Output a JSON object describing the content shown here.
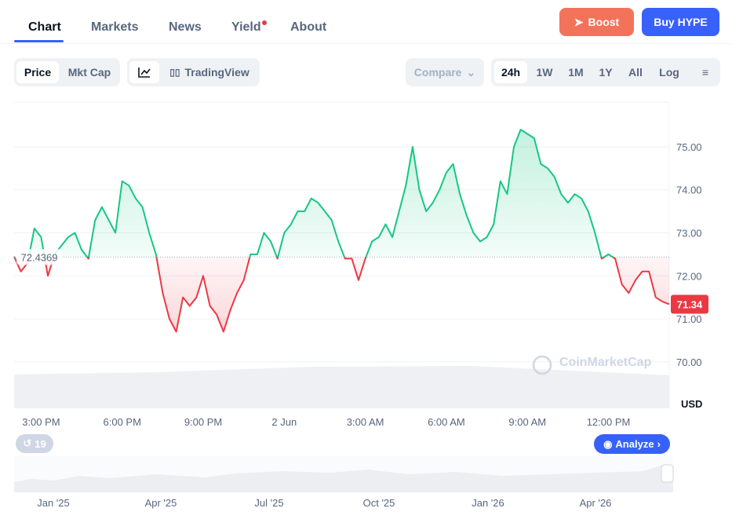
{
  "tabs": [
    "Chart",
    "Markets",
    "News",
    "Yield",
    "About"
  ],
  "buttons": {
    "boost": "Boost",
    "buy": "Buy HYPE"
  },
  "toggles": {
    "price": "Price",
    "mkt_cap": "Mkt Cap",
    "tradingview": "TradingView",
    "compare": "Compare",
    "log": "Log"
  },
  "ranges": [
    "24h",
    "1W",
    "1M",
    "1Y",
    "All"
  ],
  "watermark": "CoinMarketCap",
  "history_count": "19",
  "analyze": "Analyze",
  "navigator": {
    "labels": [
      "Jan '25",
      "Apr '25",
      "Jul '25",
      "Oct '25",
      "Jan '26",
      "Apr '26"
    ]
  },
  "chart_data": {
    "type": "line",
    "y_unit": "USD",
    "baseline": 72.4369,
    "colors": {
      "up": "#16c784",
      "down": "#ea3943"
    },
    "values": [
      72.45,
      72.1,
      72.3,
      73.1,
      72.9,
      72.0,
      72.5,
      72.7,
      72.9,
      73.0,
      72.6,
      72.4,
      73.3,
      73.6,
      73.3,
      73.0,
      74.2,
      74.1,
      73.8,
      73.6,
      73.0,
      72.5,
      71.6,
      71.0,
      70.7,
      71.5,
      71.3,
      71.5,
      72.0,
      71.3,
      71.1,
      70.7,
      71.2,
      71.6,
      71.9,
      72.5,
      72.5,
      73.0,
      72.8,
      72.4,
      73.0,
      73.2,
      73.5,
      73.5,
      73.8,
      73.7,
      73.5,
      73.3,
      72.8,
      72.4,
      72.4,
      71.9,
      72.4,
      72.8,
      72.9,
      73.2,
      72.9,
      73.5,
      74.1,
      75.0,
      74.0,
      73.5,
      73.7,
      74.0,
      74.4,
      74.6,
      73.9,
      73.4,
      73.0,
      72.8,
      72.9,
      73.2,
      74.2,
      73.9,
      75.0,
      75.4,
      75.3,
      75.2,
      74.6,
      74.5,
      74.3,
      73.9,
      73.7,
      73.9,
      73.8,
      73.5,
      73.0,
      72.4,
      72.5,
      72.4,
      71.8,
      71.6,
      71.9,
      72.1,
      72.1,
      71.5,
      71.4,
      71.34
    ],
    "xlim": [
      0,
      97
    ],
    "xticks": [
      {
        "value": 4,
        "label": "3:00 PM"
      },
      {
        "value": 16,
        "label": "6:00 PM"
      },
      {
        "value": 28,
        "label": "9:00 PM"
      },
      {
        "value": 40,
        "label": "2 Jun"
      },
      {
        "value": 52,
        "label": "3:00 AM"
      },
      {
        "value": 64,
        "label": "6:00 AM"
      },
      {
        "value": 76,
        "label": "9:00 AM"
      },
      {
        "value": 88,
        "label": "12:00 PM"
      }
    ],
    "ylim": [
      68.92,
      76.04
    ],
    "yticks": [
      {
        "value": 70,
        "label": "70.00"
      },
      {
        "value": 71,
        "label": "71.00"
      },
      {
        "value": 72,
        "label": "72.00"
      },
      {
        "value": 73,
        "label": "73.00"
      },
      {
        "value": 74,
        "label": "74.00"
      },
      {
        "value": 75,
        "label": "75.00"
      }
    ],
    "grid": true
  }
}
